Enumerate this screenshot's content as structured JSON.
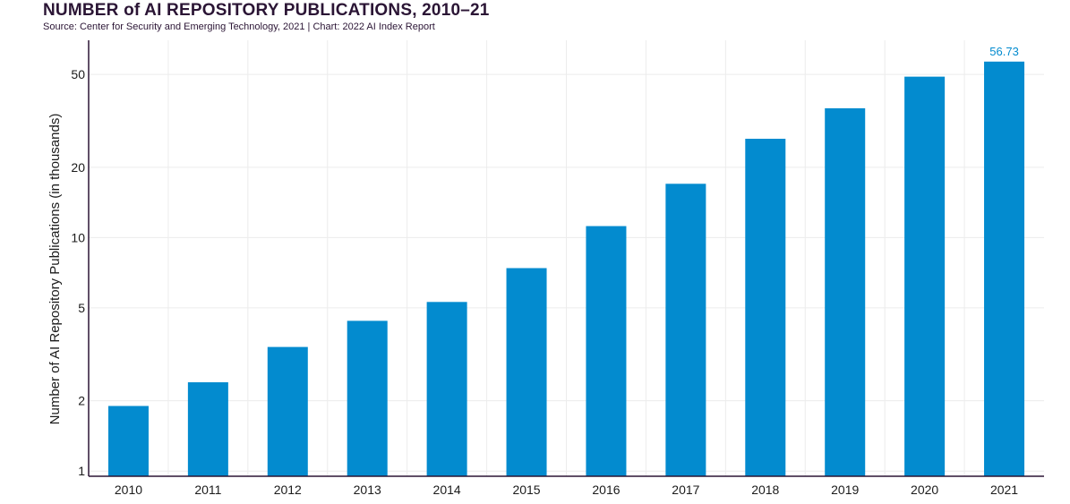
{
  "header": {
    "title": "NUMBER of AI REPOSITORY PUBLICATIONS, 2010–21",
    "source": "Source: Center for Security and Emerging Technology, 2021 | Chart: 2022 AI Index Report"
  },
  "chart_data": {
    "type": "bar",
    "title": "NUMBER of AI REPOSITORY PUBLICATIONS, 2010–21",
    "xlabel": "",
    "ylabel": "Number of AI Repository Publications (in thousands)",
    "y_scale": "log",
    "ylim": [
      0.95,
      70
    ],
    "y_ticks": [
      1,
      2,
      5,
      10,
      20,
      50
    ],
    "grid": true,
    "categories": [
      "2010",
      "2011",
      "2012",
      "2013",
      "2014",
      "2015",
      "2016",
      "2017",
      "2018",
      "2019",
      "2020",
      "2021"
    ],
    "values": [
      1.9,
      2.4,
      3.4,
      4.4,
      5.3,
      7.4,
      11.2,
      17.0,
      26.5,
      35.8,
      48.9,
      56.73
    ],
    "data_labels": [
      {
        "category": "2021",
        "text": "56.73"
      }
    ],
    "colors": {
      "bar": "#038BCF",
      "label": "#038BCF",
      "axis": "#2b1535",
      "grid": "#ececec"
    }
  }
}
